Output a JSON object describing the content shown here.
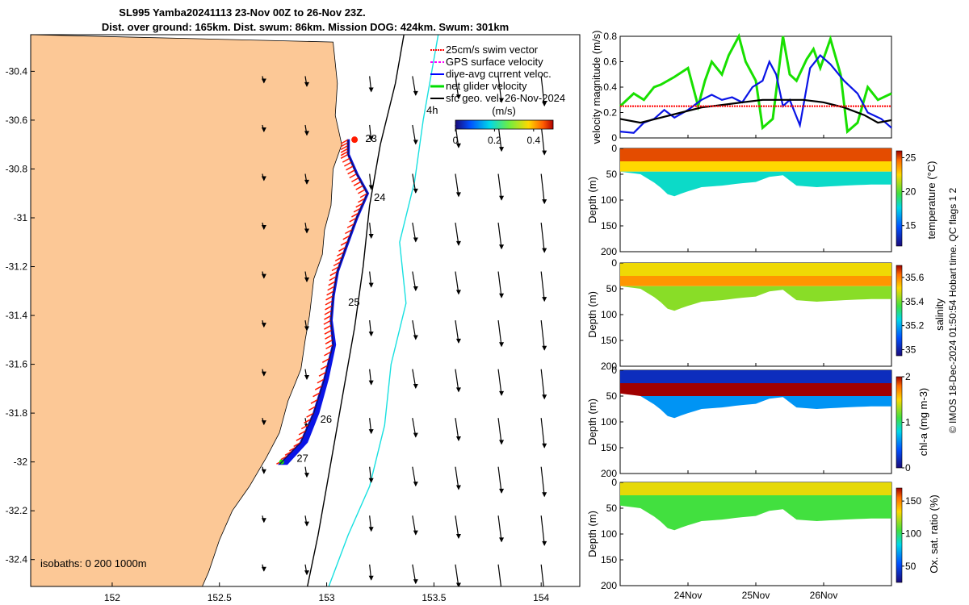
{
  "title": {
    "line1": "SL995 Yamba20241113 23-Nov 00Z to 26-Nov 23Z.",
    "line2": "Dist. over ground: 165km. Dist. swum: 86km. Mission DOG: 424km. Swum: 301km"
  },
  "side_note": "© IMOS 18-Dec-2024 01:50:54 Hobart time. QC flags 1  2",
  "colors": {
    "land": "#fcc896",
    "sea": "#ffffff",
    "track_blue": "#0a14e6",
    "swim_red": "#ff1a00",
    "green": "#18e000",
    "cyan": "#00dcdc"
  },
  "chart_data": [
    {
      "name": "map",
      "type": "scatter",
      "title": "",
      "xlabel": "",
      "ylabel": "",
      "xlim": [
        151.62,
        154.18
      ],
      "ylim": [
        -32.51,
        -30.25
      ],
      "x_ticks": [
        "152",
        "152.5",
        "153",
        "153.5",
        "154"
      ],
      "x_tick_values": [
        152,
        152.5,
        153,
        153.5,
        154
      ],
      "y_ticks": [
        "-30.4",
        "-30.6",
        "-30.8",
        "-31",
        "-31.2",
        "-31.4",
        "-31.6",
        "-31.8",
        "-32",
        "-32.2",
        "-32.4"
      ],
      "y_tick_values": [
        -30.4,
        -30.6,
        -30.8,
        -31,
        -31.2,
        -31.4,
        -31.6,
        -31.8,
        -32,
        -32.2,
        -32.4
      ],
      "legend": [
        "25cm/s swim vector",
        "GPS surface velocity",
        "dive-avg current veloc.",
        "net glider velocity",
        "sfc geo. vel. 26-Nov-2024"
      ],
      "legend_colors": [
        "#ff0000",
        "#ff00ff",
        "#0000ff",
        "#00dd00",
        "#000000"
      ],
      "colorbar_title": "(m/s)",
      "colorbar_ticks": [
        "0",
        "0.2",
        "0.4"
      ],
      "colorbar_range": [
        0,
        0.5
      ],
      "isobaths_label": "isobaths: 0   200  1000m",
      "vector_scale_label": "4h",
      "day_labels": [
        {
          "text": "23",
          "lon": 153.18,
          "lat": -30.69
        },
        {
          "text": "24",
          "lon": 153.22,
          "lat": -30.93
        },
        {
          "text": "25",
          "lon": 153.1,
          "lat": -31.36
        },
        {
          "text": "26",
          "lon": 152.97,
          "lat": -31.84
        },
        {
          "text": "27",
          "lon": 152.86,
          "lat": -32.0
        }
      ],
      "track": [
        {
          "lon": 153.1,
          "lat": -30.68
        },
        {
          "lon": 153.1,
          "lat": -30.74
        },
        {
          "lon": 153.14,
          "lat": -30.82
        },
        {
          "lon": 153.19,
          "lat": -30.9
        },
        {
          "lon": 153.14,
          "lat": -31.0
        },
        {
          "lon": 153.09,
          "lat": -31.12
        },
        {
          "lon": 153.05,
          "lat": -31.22
        },
        {
          "lon": 153.03,
          "lat": -31.32
        },
        {
          "lon": 153.02,
          "lat": -31.42
        },
        {
          "lon": 153.03,
          "lat": -31.52
        },
        {
          "lon": 152.99,
          "lat": -31.66
        },
        {
          "lon": 152.94,
          "lat": -31.8
        },
        {
          "lon": 152.88,
          "lat": -31.92
        },
        {
          "lon": 152.78,
          "lat": -32.01
        }
      ],
      "coastline": [
        {
          "lon": 153.03,
          "lat": -30.28
        },
        {
          "lon": 153.05,
          "lat": -30.45
        },
        {
          "lon": 153.04,
          "lat": -30.58
        },
        {
          "lon": 153.07,
          "lat": -30.7
        },
        {
          "lon": 153.03,
          "lat": -30.8
        },
        {
          "lon": 153.02,
          "lat": -30.95
        },
        {
          "lon": 152.99,
          "lat": -31.05
        },
        {
          "lon": 152.98,
          "lat": -31.15
        },
        {
          "lon": 152.94,
          "lat": -31.25
        },
        {
          "lon": 152.92,
          "lat": -31.4
        },
        {
          "lon": 152.9,
          "lat": -31.5
        },
        {
          "lon": 152.88,
          "lat": -31.62
        },
        {
          "lon": 152.82,
          "lat": -31.75
        },
        {
          "lon": 152.78,
          "lat": -31.88
        },
        {
          "lon": 152.72,
          "lat": -31.98
        },
        {
          "lon": 152.64,
          "lat": -32.1
        },
        {
          "lon": 152.56,
          "lat": -32.2
        },
        {
          "lon": 152.5,
          "lat": -32.32
        },
        {
          "lon": 152.45,
          "lat": -32.45
        },
        {
          "lon": 152.42,
          "lat": -32.51
        }
      ],
      "isobath_200m": [
        {
          "lon": 153.36,
          "lat": -30.25
        },
        {
          "lon": 153.32,
          "lat": -30.45
        },
        {
          "lon": 153.25,
          "lat": -30.7
        },
        {
          "lon": 153.2,
          "lat": -30.95
        },
        {
          "lon": 153.17,
          "lat": -31.2
        },
        {
          "lon": 153.13,
          "lat": -31.45
        },
        {
          "lon": 153.08,
          "lat": -31.7
        },
        {
          "lon": 153.04,
          "lat": -31.9
        },
        {
          "lon": 153.0,
          "lat": -32.1
        },
        {
          "lon": 152.96,
          "lat": -32.3
        },
        {
          "lon": 152.91,
          "lat": -32.51
        }
      ],
      "isobath_1000m": [
        {
          "lon": 153.52,
          "lat": -30.25
        },
        {
          "lon": 153.45,
          "lat": -30.6
        },
        {
          "lon": 153.41,
          "lat": -30.85
        },
        {
          "lon": 153.34,
          "lat": -31.1
        },
        {
          "lon": 153.37,
          "lat": -31.35
        },
        {
          "lon": 153.3,
          "lat": -31.6
        },
        {
          "lon": 153.27,
          "lat": -31.85
        },
        {
          "lon": 153.2,
          "lat": -32.1
        },
        {
          "lon": 153.1,
          "lat": -32.3
        },
        {
          "lon": 153.01,
          "lat": -32.51
        }
      ]
    },
    {
      "name": "velocity",
      "type": "line",
      "ylabel": "velocity magnitude (m/s)",
      "ylim": [
        0,
        0.8
      ],
      "y_ticks": [
        "0",
        "0.2",
        "0.4",
        "0.6",
        "0.8"
      ],
      "y_tick_values": [
        0,
        0.2,
        0.4,
        0.6,
        0.8
      ],
      "xlim_days": [
        23.0,
        27.0
      ],
      "series": [
        {
          "name": "net glider velocity",
          "color": "#18e000",
          "x": [
            23.0,
            23.2,
            23.35,
            23.5,
            23.6,
            23.8,
            24.0,
            24.15,
            24.25,
            24.35,
            24.5,
            24.6,
            24.75,
            24.85,
            25.0,
            25.1,
            25.25,
            25.4,
            25.5,
            25.6,
            25.75,
            25.85,
            25.95,
            26.1,
            26.25,
            26.35,
            26.5,
            26.65,
            26.8,
            27.0
          ],
          "values": [
            0.25,
            0.35,
            0.3,
            0.4,
            0.42,
            0.48,
            0.55,
            0.25,
            0.45,
            0.6,
            0.5,
            0.65,
            0.8,
            0.6,
            0.45,
            0.08,
            0.15,
            0.8,
            0.5,
            0.45,
            0.62,
            0.7,
            0.55,
            0.78,
            0.5,
            0.05,
            0.12,
            0.4,
            0.3,
            0.35
          ]
        },
        {
          "name": "dive-avg current veloc.",
          "color": "#0a14e6",
          "x": [
            23.0,
            23.2,
            23.35,
            23.5,
            23.65,
            23.8,
            24.0,
            24.2,
            24.35,
            24.5,
            24.65,
            24.8,
            24.95,
            25.1,
            25.2,
            25.3,
            25.4,
            25.5,
            25.65,
            25.8,
            25.95,
            26.1,
            26.3,
            26.5,
            26.65,
            26.85,
            27.0
          ],
          "values": [
            0.05,
            0.04,
            0.12,
            0.15,
            0.22,
            0.16,
            0.22,
            0.3,
            0.34,
            0.3,
            0.32,
            0.28,
            0.4,
            0.45,
            0.6,
            0.5,
            0.25,
            0.3,
            0.1,
            0.55,
            0.65,
            0.58,
            0.45,
            0.35,
            0.2,
            0.15,
            0.08
          ]
        },
        {
          "name": "sfc geo. vel.",
          "color": "#000000",
          "x": [
            23.0,
            23.3,
            23.6,
            23.9,
            24.2,
            24.5,
            24.8,
            25.1,
            25.4,
            25.7,
            26.0,
            26.3,
            26.6,
            26.8,
            27.0
          ],
          "values": [
            0.15,
            0.12,
            0.16,
            0.2,
            0.24,
            0.26,
            0.28,
            0.3,
            0.3,
            0.3,
            0.28,
            0.24,
            0.18,
            0.12,
            0.14
          ]
        },
        {
          "name": "25cm/s swim",
          "color": "#ff0000",
          "x": [
            23.0,
            27.0
          ],
          "values": [
            0.25,
            0.25
          ]
        }
      ]
    },
    {
      "name": "temperature",
      "type": "heatmap",
      "ylabel": "Depth (m)",
      "cbar_label": "temperature (°C)",
      "ylim": [
        200,
        0
      ],
      "y_ticks": [
        "0",
        "50",
        "100",
        "150",
        "200"
      ],
      "cbar_ticks": [
        "15",
        "20",
        "25"
      ],
      "cbar_range": [
        12,
        26
      ],
      "layers": [
        {
          "top": 0,
          "bottom": 25,
          "value": 25
        },
        {
          "top": 25,
          "bottom": 45,
          "value": 22.5
        },
        {
          "top": 45,
          "bottom": 200,
          "value": 18
        }
      ]
    },
    {
      "name": "salinity",
      "type": "heatmap",
      "ylabel": "Depth (m)",
      "cbar_label": "salinity",
      "ylim": [
        200,
        0
      ],
      "y_ticks": [
        "0",
        "50",
        "100",
        "150",
        "200"
      ],
      "cbar_ticks": [
        "35",
        "35.2",
        "35.4",
        "35.6"
      ],
      "cbar_ticks_values": [
        35,
        35.2,
        35.4,
        35.6
      ],
      "cbar_range": [
        34.95,
        35.7
      ],
      "layers": [
        {
          "top": 0,
          "bottom": 25,
          "value": 35.5
        },
        {
          "top": 25,
          "bottom": 45,
          "value": 35.58
        },
        {
          "top": 45,
          "bottom": 200,
          "value": 35.42
        }
      ]
    },
    {
      "name": "chlorophyll",
      "type": "heatmap",
      "ylabel": "Depth (m)",
      "cbar_label": "chl-a (mg m-3)",
      "ylim": [
        200,
        0
      ],
      "y_ticks": [
        "0",
        "50",
        "100",
        "150",
        "200"
      ],
      "cbar_ticks": [
        "0",
        "1",
        "2"
      ],
      "cbar_range": [
        0,
        2
      ],
      "layers": [
        {
          "top": 0,
          "bottom": 25,
          "value": 0.2
        },
        {
          "top": 25,
          "bottom": 50,
          "value": 2
        },
        {
          "top": 50,
          "bottom": 200,
          "value": 0.6
        }
      ]
    },
    {
      "name": "oxygen",
      "type": "heatmap",
      "ylabel": "Depth (m)",
      "cbar_label": "Ox. sat. ratio (%)",
      "ylim": [
        200,
        0
      ],
      "y_ticks": [
        "0",
        "50",
        "100",
        "150",
        "200"
      ],
      "cbar_ticks": [
        "50",
        "100",
        "150"
      ],
      "cbar_range": [
        25,
        170
      ],
      "layers": [
        {
          "top": 0,
          "bottom": 25,
          "value": 130
        },
        {
          "top": 25,
          "bottom": 200,
          "value": 105
        }
      ]
    }
  ],
  "time_axis": {
    "x_ticks": [
      "24Nov",
      "25Nov",
      "26Nov"
    ],
    "x_tick_days": [
      24,
      25,
      26
    ],
    "xlim_days": [
      23.0,
      27.0
    ],
    "profile_bottom": [
      {
        "day": 23.0,
        "depth": 45
      },
      {
        "day": 23.3,
        "depth": 50
      },
      {
        "day": 23.55,
        "depth": 70
      },
      {
        "day": 23.75,
        "depth": 95
      },
      {
        "day": 23.95,
        "depth": 85
      },
      {
        "day": 24.2,
        "depth": 75
      },
      {
        "day": 24.5,
        "depth": 72
      },
      {
        "day": 24.75,
        "depth": 68
      },
      {
        "day": 25.0,
        "depth": 65
      },
      {
        "day": 25.2,
        "depth": 55
      },
      {
        "day": 25.4,
        "depth": 52
      },
      {
        "day": 25.6,
        "depth": 72
      },
      {
        "day": 25.9,
        "depth": 75
      },
      {
        "day": 26.3,
        "depth": 72
      },
      {
        "day": 26.7,
        "depth": 70
      },
      {
        "day": 27.0,
        "depth": 70
      }
    ]
  }
}
